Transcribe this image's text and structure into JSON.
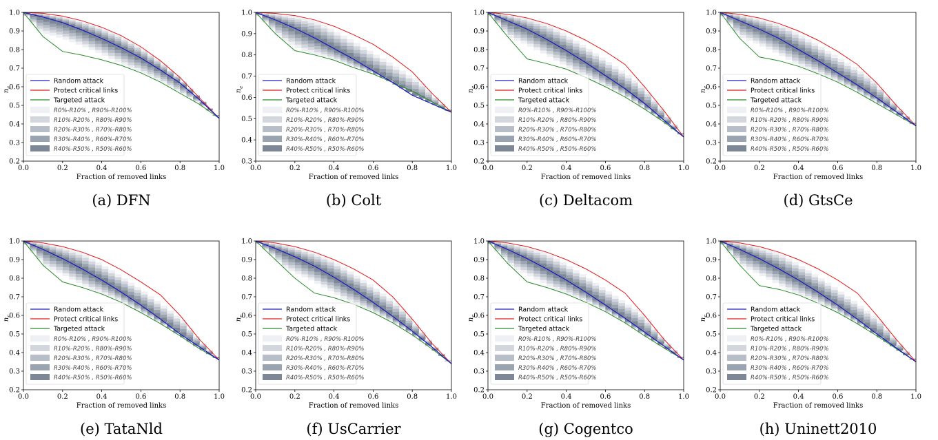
{
  "figure": {
    "xlabel": "Fraction of removed links",
    "ylabel": "n_c",
    "xticks": [
      "0.0",
      "0.2",
      "0.4",
      "0.6",
      "0.8",
      "1.0"
    ],
    "yticks": [
      "0.2",
      "0.3",
      "0.4",
      "0.5",
      "0.6",
      "0.7",
      "0.8",
      "0.9",
      "1.0"
    ],
    "legend": [
      "Random attack",
      "Protect critical links",
      "Targeted attack"
    ],
    "band_labels": [
      [
        "R0%-R10%",
        "R90%-R100%"
      ],
      [
        "R10%-R20%",
        "R80%-R90%"
      ],
      [
        "R20%-R30%",
        "R70%-R80%"
      ],
      [
        "R30%-R40%",
        "R60%-R70%"
      ],
      [
        "R40%-R50%",
        "R50%-R60%"
      ]
    ],
    "colors": {
      "random": "#1f1fbf",
      "protect": "#e31a1c",
      "targeted": "#2a8a2a",
      "bands": [
        "#eef0f3",
        "#d3d7dd",
        "#b7bec8",
        "#9aa3b0",
        "#7d8796"
      ]
    }
  },
  "chart_data": [
    {
      "type": "line",
      "caption": "(a) DFN",
      "xlabel": "Fraction of removed links",
      "ylabel": "n_c",
      "xlim": [
        0,
        1
      ],
      "ylim": [
        0.2,
        1.0
      ],
      "grid": false,
      "legend_position": "center-left",
      "x": [
        0,
        0.1,
        0.2,
        0.3,
        0.4,
        0.5,
        0.6,
        0.7,
        0.8,
        0.9,
        1.0
      ],
      "series": [
        {
          "name": "Random attack",
          "y": [
            1.0,
            0.975,
            0.945,
            0.905,
            0.86,
            0.81,
            0.755,
            0.69,
            0.62,
            0.53,
            0.43
          ]
        },
        {
          "name": "Protect critical links",
          "y": [
            1.0,
            0.995,
            0.98,
            0.955,
            0.92,
            0.875,
            0.815,
            0.74,
            0.65,
            0.54,
            0.43
          ]
        },
        {
          "name": "Targeted attack",
          "y": [
            1.0,
            0.87,
            0.79,
            0.77,
            0.745,
            0.715,
            0.675,
            0.625,
            0.565,
            0.505,
            0.43
          ]
        }
      ]
    },
    {
      "type": "line",
      "caption": "(b) Colt",
      "xlabel": "Fraction of removed links",
      "ylabel": "n_c",
      "xlim": [
        0,
        1
      ],
      "ylim": [
        0.3,
        1.0
      ],
      "grid": false,
      "legend_position": "center-left",
      "x": [
        0,
        0.1,
        0.2,
        0.3,
        0.4,
        0.5,
        0.6,
        0.7,
        0.8,
        0.9,
        1.0
      ],
      "series": [
        {
          "name": "Random attack",
          "y": [
            1.0,
            0.965,
            0.925,
            0.88,
            0.83,
            0.78,
            0.725,
            0.67,
            0.61,
            0.57,
            0.53
          ]
        },
        {
          "name": "Protect critical links",
          "y": [
            1.0,
            0.995,
            0.985,
            0.965,
            0.935,
            0.895,
            0.85,
            0.79,
            0.72,
            0.62,
            0.53
          ]
        },
        {
          "name": "Targeted attack",
          "y": [
            1.0,
            0.9,
            0.82,
            0.8,
            0.775,
            0.74,
            0.71,
            0.67,
            0.63,
            0.58,
            0.53
          ]
        }
      ]
    },
    {
      "type": "line",
      "caption": "(c) Deltacom",
      "xlabel": "Fraction of removed links",
      "ylabel": "n_c",
      "xlim": [
        0,
        1
      ],
      "ylim": [
        0.2,
        1.0
      ],
      "grid": false,
      "legend_position": "center-left",
      "x": [
        0,
        0.1,
        0.2,
        0.3,
        0.4,
        0.5,
        0.6,
        0.7,
        0.8,
        0.9,
        1.0
      ],
      "series": [
        {
          "name": "Random attack",
          "y": [
            1.0,
            0.955,
            0.91,
            0.855,
            0.795,
            0.73,
            0.66,
            0.59,
            0.51,
            0.42,
            0.33
          ]
        },
        {
          "name": "Protect critical links",
          "y": [
            1.0,
            0.99,
            0.97,
            0.94,
            0.9,
            0.85,
            0.79,
            0.72,
            0.6,
            0.47,
            0.33
          ]
        },
        {
          "name": "Targeted attack",
          "y": [
            1.0,
            0.87,
            0.75,
            0.725,
            0.695,
            0.65,
            0.6,
            0.545,
            0.48,
            0.41,
            0.33
          ]
        }
      ]
    },
    {
      "type": "line",
      "caption": "(d) GtsCe",
      "xlabel": "Fraction of removed links",
      "ylabel": "n_c",
      "xlim": [
        0,
        1
      ],
      "ylim": [
        0.2,
        1.0
      ],
      "grid": false,
      "legend_position": "center-left",
      "x": [
        0,
        0.1,
        0.2,
        0.3,
        0.4,
        0.5,
        0.6,
        0.7,
        0.8,
        0.9,
        1.0
      ],
      "series": [
        {
          "name": "Random attack",
          "y": [
            1.0,
            0.955,
            0.91,
            0.86,
            0.8,
            0.74,
            0.675,
            0.61,
            0.54,
            0.465,
            0.39
          ]
        },
        {
          "name": "Protect critical links",
          "y": [
            1.0,
            0.99,
            0.97,
            0.94,
            0.9,
            0.85,
            0.79,
            0.72,
            0.62,
            0.5,
            0.39
          ]
        },
        {
          "name": "Targeted attack",
          "y": [
            1.0,
            0.86,
            0.76,
            0.74,
            0.71,
            0.67,
            0.625,
            0.57,
            0.51,
            0.45,
            0.39
          ]
        }
      ]
    },
    {
      "type": "line",
      "caption": "(e) TataNld",
      "xlabel": "Fraction of removed links",
      "ylabel": "n_c",
      "xlim": [
        0,
        1
      ],
      "ylim": [
        0.2,
        1.0
      ],
      "grid": false,
      "legend_position": "center-left",
      "x": [
        0,
        0.1,
        0.2,
        0.3,
        0.4,
        0.5,
        0.6,
        0.7,
        0.8,
        0.9,
        1.0
      ],
      "series": [
        {
          "name": "Random attack",
          "y": [
            1.0,
            0.955,
            0.905,
            0.85,
            0.79,
            0.725,
            0.655,
            0.58,
            0.5,
            0.43,
            0.36
          ]
        },
        {
          "name": "Protect critical links",
          "y": [
            1.0,
            0.99,
            0.97,
            0.94,
            0.9,
            0.845,
            0.78,
            0.71,
            0.6,
            0.47,
            0.36
          ]
        },
        {
          "name": "Targeted attack",
          "y": [
            1.0,
            0.87,
            0.78,
            0.75,
            0.715,
            0.67,
            0.615,
            0.555,
            0.49,
            0.42,
            0.36
          ]
        }
      ]
    },
    {
      "type": "line",
      "caption": "(f) UsCarrier",
      "xlabel": "Fraction of removed links",
      "ylabel": "n_c",
      "xlim": [
        0,
        1
      ],
      "ylim": [
        0.2,
        1.0
      ],
      "grid": false,
      "legend_position": "center-left",
      "x": [
        0,
        0.1,
        0.2,
        0.3,
        0.4,
        0.5,
        0.6,
        0.7,
        0.8,
        0.9,
        1.0
      ],
      "series": [
        {
          "name": "Random attack",
          "y": [
            1.0,
            0.96,
            0.915,
            0.865,
            0.805,
            0.74,
            0.67,
            0.595,
            0.515,
            0.43,
            0.34
          ]
        },
        {
          "name": "Protect critical links",
          "y": [
            1.0,
            0.99,
            0.97,
            0.94,
            0.9,
            0.85,
            0.79,
            0.7,
            0.58,
            0.45,
            0.34
          ]
        },
        {
          "name": "Targeted attack",
          "y": [
            1.0,
            0.9,
            0.8,
            0.72,
            0.695,
            0.66,
            0.615,
            0.56,
            0.495,
            0.42,
            0.34
          ]
        }
      ]
    },
    {
      "type": "line",
      "caption": "(g) Cogentco",
      "xlabel": "Fraction of removed links",
      "ylabel": "n_c",
      "xlim": [
        0,
        1
      ],
      "ylim": [
        0.2,
        1.0
      ],
      "grid": false,
      "legend_position": "center-left",
      "x": [
        0,
        0.1,
        0.2,
        0.3,
        0.4,
        0.5,
        0.6,
        0.7,
        0.8,
        0.9,
        1.0
      ],
      "series": [
        {
          "name": "Random attack",
          "y": [
            1.0,
            0.955,
            0.905,
            0.85,
            0.79,
            0.725,
            0.655,
            0.585,
            0.51,
            0.435,
            0.36
          ]
        },
        {
          "name": "Protect critical links",
          "y": [
            1.0,
            0.99,
            0.97,
            0.94,
            0.9,
            0.85,
            0.79,
            0.72,
            0.6,
            0.47,
            0.36
          ]
        },
        {
          "name": "Targeted attack",
          "y": [
            1.0,
            0.88,
            0.78,
            0.75,
            0.715,
            0.67,
            0.62,
            0.56,
            0.49,
            0.425,
            0.36
          ]
        }
      ]
    },
    {
      "type": "line",
      "caption": "(h) Uninett2010",
      "xlabel": "Fraction of removed links",
      "ylabel": "n_c",
      "xlim": [
        0,
        1
      ],
      "ylim": [
        0.2,
        1.0
      ],
      "grid": false,
      "legend_position": "center-left",
      "x": [
        0,
        0.1,
        0.2,
        0.3,
        0.4,
        0.5,
        0.6,
        0.7,
        0.8,
        0.9,
        1.0
      ],
      "series": [
        {
          "name": "Random attack",
          "y": [
            1.0,
            0.955,
            0.905,
            0.85,
            0.79,
            0.725,
            0.655,
            0.58,
            0.5,
            0.425,
            0.35
          ]
        },
        {
          "name": "Protect critical links",
          "y": [
            1.0,
            0.99,
            0.97,
            0.94,
            0.9,
            0.85,
            0.79,
            0.72,
            0.6,
            0.47,
            0.35
          ]
        },
        {
          "name": "Targeted attack",
          "y": [
            1.0,
            0.87,
            0.76,
            0.74,
            0.71,
            0.665,
            0.615,
            0.555,
            0.49,
            0.42,
            0.35
          ]
        }
      ]
    }
  ]
}
